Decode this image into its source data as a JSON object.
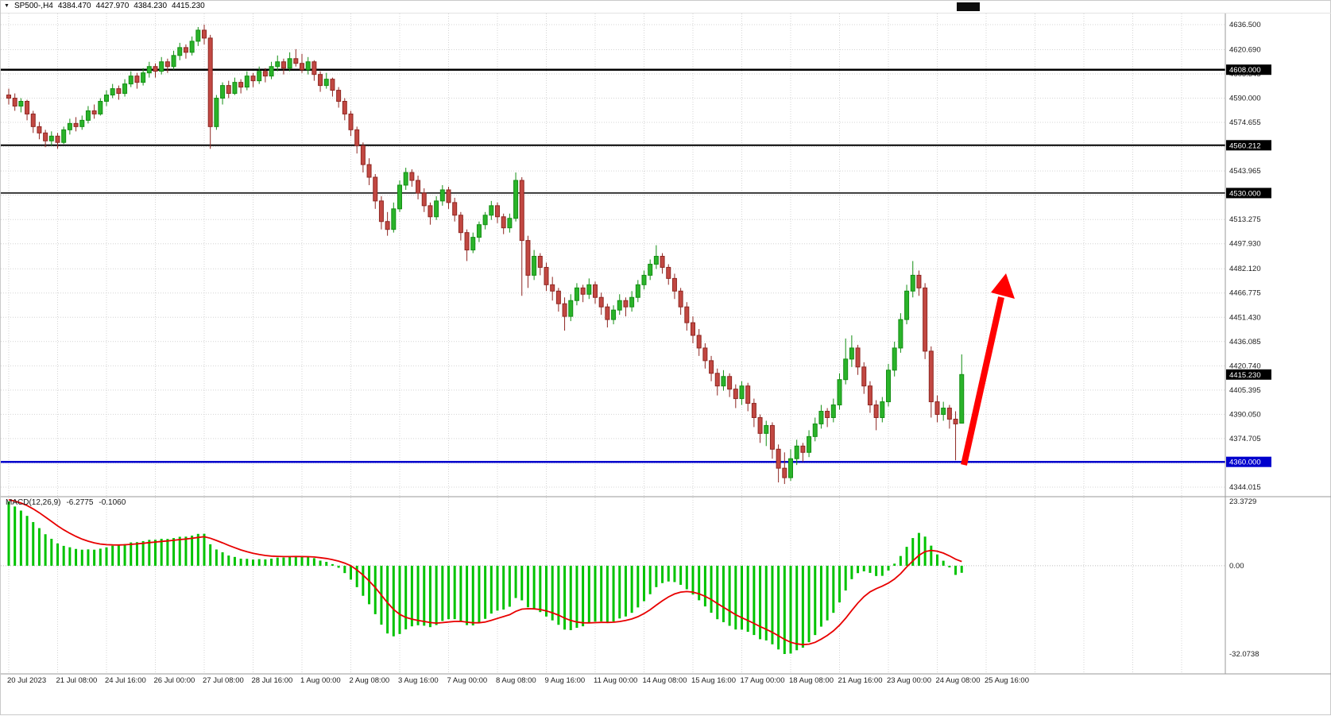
{
  "header": {
    "symbol_timeframe": "SP500-,H4",
    "open": "4384.470",
    "high": "4427.970",
    "low": "4384.230",
    "close": "4415.230"
  },
  "colors": {
    "bull": "#148f14",
    "bull_fill": "#2ab32a",
    "bear": "#8f2722",
    "bear_fill": "#c24842",
    "grid": "#d4d4d4",
    "level_black": "#000000",
    "support_blue": "#0000cd",
    "macd_hist": "#00c300",
    "macd_signal": "#e80000",
    "arrow_red": "#ff0000",
    "badge_black": "#000000",
    "axis_text": "#1b1b1b"
  },
  "chart_data": {
    "type": "candlestick",
    "symbol": "SP500-",
    "timeframe": "H4",
    "title": "SP500-,H4 4384.470 4427.970 4384.230 4415.230",
    "bars_per_label": 8,
    "time_labels": [
      "20 Jul 2023",
      "21 Jul 08:00",
      "24 Jul 16:00",
      "26 Jul 00:00",
      "27 Jul 08:00",
      "28 Jul 16:00",
      "1 Aug 00:00",
      "2 Aug 08:00",
      "3 Aug 16:00",
      "7 Aug 00:00",
      "8 Aug 08:00",
      "9 Aug 16:00",
      "11 Aug 00:00",
      "14 Aug 08:00",
      "15 Aug 16:00",
      "17 Aug 00:00",
      "18 Aug 08:00",
      "21 Aug 16:00",
      "23 Aug 00:00",
      "24 Aug 08:00",
      "25 Aug 16:00"
    ],
    "price_ticks": [
      "4636.500",
      "4620.690",
      "4605.345",
      "4590.000",
      "4574.655",
      "4559.310",
      "4543.965",
      "4528.620",
      "4513.275",
      "4497.930",
      "4482.120",
      "4466.775",
      "4451.430",
      "4436.085",
      "4420.740",
      "4405.395",
      "4390.050",
      "4374.705",
      "4359.360",
      "4344.015"
    ],
    "levels": [
      {
        "value": 4608.0,
        "label": "4608.000",
        "type": "resistance",
        "color": "#000000",
        "badge": "#000000",
        "width": 2.5
      },
      {
        "value": 4560.212,
        "label": "4560.212",
        "type": "resistance",
        "color": "#000000",
        "badge": "#000000",
        "width": 2
      },
      {
        "value": 4530.0,
        "label": "4530.000",
        "type": "resistance",
        "color": "#000000",
        "badge": "#000000",
        "width": 1.5
      },
      {
        "value": 4360.0,
        "label": "4360.000",
        "type": "support",
        "color": "#0000cd",
        "badge": "#0000cd",
        "width": 2.5
      }
    ],
    "current_price": {
      "value": 4415.23,
      "label": "4415.230"
    },
    "annotation_arrow": {
      "direction": "up",
      "color": "#ff0000"
    },
    "macd": {
      "label": "MACD(12,26,9)",
      "macd_value": "-6.2775",
      "signal_value": "-0.1060",
      "params": [
        12,
        26,
        9
      ],
      "scale_max": "23.3729",
      "scale_zero": "0.00",
      "scale_min": "-32.0738"
    },
    "candles": [
      [
        4592,
        4596,
        4586,
        4590
      ],
      [
        4590,
        4593,
        4582,
        4585
      ],
      [
        4585,
        4590,
        4581,
        4588
      ],
      [
        4588,
        4589,
        4576,
        4580
      ],
      [
        4580,
        4582,
        4568,
        4572
      ],
      [
        4572,
        4575,
        4564,
        4568
      ],
      [
        4568,
        4570,
        4559,
        4563
      ],
      [
        4563,
        4569,
        4560,
        4566
      ],
      [
        4566,
        4568,
        4558,
        4562
      ],
      [
        4562,
        4572,
        4561,
        4570
      ],
      [
        4570,
        4577,
        4567,
        4574
      ],
      [
        4574,
        4578,
        4569,
        4572
      ],
      [
        4572,
        4579,
        4570,
        4576
      ],
      [
        4576,
        4585,
        4574,
        4582
      ],
      [
        4582,
        4586,
        4577,
        4580
      ],
      [
        4580,
        4590,
        4579,
        4588
      ],
      [
        4588,
        4595,
        4585,
        4592
      ],
      [
        4592,
        4599,
        4590,
        4596
      ],
      [
        4596,
        4598,
        4589,
        4593
      ],
      [
        4593,
        4602,
        4591,
        4599
      ],
      [
        4599,
        4607,
        4597,
        4604
      ],
      [
        4604,
        4606,
        4596,
        4600
      ],
      [
        4600,
        4609,
        4598,
        4606
      ],
      [
        4606,
        4613,
        4603,
        4610
      ],
      [
        4610,
        4612,
        4603,
        4607
      ],
      [
        4607,
        4616,
        4605,
        4613
      ],
      [
        4613,
        4615,
        4606,
        4610
      ],
      [
        4610,
        4620,
        4608,
        4617
      ],
      [
        4617,
        4625,
        4614,
        4622
      ],
      [
        4622,
        4624,
        4615,
        4619
      ],
      [
        4619,
        4629,
        4617,
        4626
      ],
      [
        4626,
        4635,
        4623,
        4633
      ],
      [
        4633,
        4636.5,
        4624,
        4628
      ],
      [
        4628,
        4630,
        4558,
        4572
      ],
      [
        4572,
        4592,
        4570,
        4590
      ],
      [
        4590,
        4600,
        4586,
        4598
      ],
      [
        4598,
        4601,
        4590,
        4593
      ],
      [
        4593,
        4603,
        4592,
        4600
      ],
      [
        4600,
        4602,
        4593,
        4597
      ],
      [
        4597,
        4607,
        4595,
        4604
      ],
      [
        4604,
        4606,
        4597,
        4601
      ],
      [
        4601,
        4610,
        4599,
        4607
      ],
      [
        4607,
        4609,
        4600,
        4604
      ],
      [
        4604,
        4613,
        4602,
        4610
      ],
      [
        4610,
        4617,
        4607,
        4613
      ],
      [
        4613,
        4615,
        4605,
        4609
      ],
      [
        4609,
        4619,
        4607,
        4615
      ],
      [
        4615,
        4621,
        4610,
        4612
      ],
      [
        4612,
        4618,
        4606,
        4608
      ],
      [
        4608,
        4616,
        4605,
        4613
      ],
      [
        4613,
        4614,
        4601,
        4605
      ],
      [
        4605,
        4607,
        4594,
        4598
      ],
      [
        4598,
        4606,
        4596,
        4602
      ],
      [
        4602,
        4603,
        4591,
        4595
      ],
      [
        4595,
        4597,
        4584,
        4588
      ],
      [
        4588,
        4590,
        4576,
        4580
      ],
      [
        4580,
        4582,
        4566,
        4570
      ],
      [
        4570,
        4572,
        4555,
        4560
      ],
      [
        4560,
        4562,
        4543,
        4548
      ],
      [
        4548,
        4552,
        4535,
        4540
      ],
      [
        4540,
        4542,
        4520,
        4525
      ],
      [
        4525,
        4528,
        4507,
        4512
      ],
      [
        4512,
        4518,
        4503,
        4507
      ],
      [
        4507,
        4524,
        4505,
        4520
      ],
      [
        4520,
        4538,
        4518,
        4535
      ],
      [
        4535,
        4546,
        4532,
        4543
      ],
      [
        4543,
        4545,
        4534,
        4538
      ],
      [
        4538,
        4541,
        4526,
        4530
      ],
      [
        4530,
        4533,
        4518,
        4522
      ],
      [
        4522,
        4524,
        4510,
        4515
      ],
      [
        4515,
        4528,
        4513,
        4525
      ],
      [
        4525,
        4535,
        4522,
        4532
      ],
      [
        4532,
        4534,
        4520,
        4524
      ],
      [
        4524,
        4527,
        4512,
        4516
      ],
      [
        4516,
        4518,
        4500,
        4505
      ],
      [
        4505,
        4507,
        4487,
        4494
      ],
      [
        4494,
        4505,
        4492,
        4502
      ],
      [
        4502,
        4512,
        4499,
        4510
      ],
      [
        4510,
        4518,
        4507,
        4516
      ],
      [
        4516,
        4525,
        4513,
        4522
      ],
      [
        4522,
        4524,
        4511,
        4515
      ],
      [
        4515,
        4517,
        4504,
        4508
      ],
      [
        4508,
        4517,
        4505,
        4514
      ],
      [
        4514,
        4543,
        4512,
        4538
      ],
      [
        4538,
        4540,
        4465,
        4500
      ],
      [
        4500,
        4503,
        4470,
        4478
      ],
      [
        4478,
        4494,
        4475,
        4490
      ],
      [
        4490,
        4492,
        4478,
        4483
      ],
      [
        4483,
        4486,
        4468,
        4472
      ],
      [
        4472,
        4477,
        4462,
        4468
      ],
      [
        4468,
        4470,
        4455,
        4460
      ],
      [
        4460,
        4464,
        4443,
        4452
      ],
      [
        4452,
        4466,
        4449,
        4462
      ],
      [
        4462,
        4473,
        4459,
        4470
      ],
      [
        4470,
        4472,
        4461,
        4466
      ],
      [
        4466,
        4476,
        4463,
        4472
      ],
      [
        4472,
        4474,
        4460,
        4464
      ],
      [
        4464,
        4467,
        4453,
        4458
      ],
      [
        4458,
        4460,
        4445,
        4450
      ],
      [
        4450,
        4459,
        4447,
        4456
      ],
      [
        4456,
        4466,
        4453,
        4462
      ],
      [
        4462,
        4464,
        4452,
        4458
      ],
      [
        4458,
        4468,
        4455,
        4464
      ],
      [
        4464,
        4475,
        4461,
        4472
      ],
      [
        4472,
        4481,
        4469,
        4478
      ],
      [
        4478,
        4488,
        4475,
        4485
      ],
      [
        4485,
        4497,
        4482,
        4490
      ],
      [
        4490,
        4492,
        4479,
        4483
      ],
      [
        4483,
        4485,
        4472,
        4476
      ],
      [
        4476,
        4479,
        4463,
        4468
      ],
      [
        4468,
        4470,
        4453,
        4458
      ],
      [
        4458,
        4461,
        4443,
        4448
      ],
      [
        4448,
        4452,
        4435,
        4440
      ],
      [
        4440,
        4444,
        4427,
        4432
      ],
      [
        4432,
        4435,
        4419,
        4424
      ],
      [
        4424,
        4427,
        4411,
        4416
      ],
      [
        4416,
        4419,
        4402,
        4408
      ],
      [
        4408,
        4418,
        4405,
        4414
      ],
      [
        4414,
        4416,
        4401,
        4406
      ],
      [
        4406,
        4409,
        4394,
        4400
      ],
      [
        4400,
        4411,
        4396,
        4408
      ],
      [
        4408,
        4410,
        4392,
        4397
      ],
      [
        4397,
        4400,
        4382,
        4388
      ],
      [
        4388,
        4390,
        4372,
        4378
      ],
      [
        4378,
        4386,
        4370,
        4383
      ],
      [
        4383,
        4385,
        4362,
        4368
      ],
      [
        4368,
        4371,
        4347,
        4356
      ],
      [
        4356,
        4366,
        4346,
        4350
      ],
      [
        4350,
        4368,
        4348,
        4362
      ],
      [
        4362,
        4374,
        4358,
        4370
      ],
      [
        4370,
        4372,
        4360,
        4366
      ],
      [
        4366,
        4380,
        4363,
        4376
      ],
      [
        4376,
        4388,
        4373,
        4384
      ],
      [
        4384,
        4396,
        4381,
        4392
      ],
      [
        4392,
        4394,
        4382,
        4388
      ],
      [
        4388,
        4400,
        4385,
        4396
      ],
      [
        4396,
        4416,
        4393,
        4412
      ],
      [
        4412,
        4438,
        4409,
        4425
      ],
      [
        4425,
        4440,
        4420,
        4432
      ],
      [
        4432,
        4434,
        4415,
        4420
      ],
      [
        4420,
        4423,
        4403,
        4408
      ],
      [
        4408,
        4411,
        4391,
        4396
      ],
      [
        4396,
        4399,
        4380,
        4388
      ],
      [
        4388,
        4401,
        4385,
        4398
      ],
      [
        4398,
        4422,
        4395,
        4418
      ],
      [
        4418,
        4436,
        4414,
        4432
      ],
      [
        4432,
        4454,
        4429,
        4450
      ],
      [
        4450,
        4472,
        4447,
        4468
      ],
      [
        4468,
        4487,
        4464,
        4478
      ],
      [
        4478,
        4481,
        4465,
        4470
      ],
      [
        4470,
        4473,
        4425,
        4430
      ],
      [
        4430,
        4433,
        4388,
        4398
      ],
      [
        4398,
        4402,
        4385,
        4390
      ],
      [
        4390,
        4398,
        4386,
        4394
      ],
      [
        4394,
        4396,
        4381,
        4387
      ],
      [
        4387,
        4392,
        4361,
        4384
      ],
      [
        4384.47,
        4427.97,
        4384.23,
        4415.23
      ]
    ]
  }
}
